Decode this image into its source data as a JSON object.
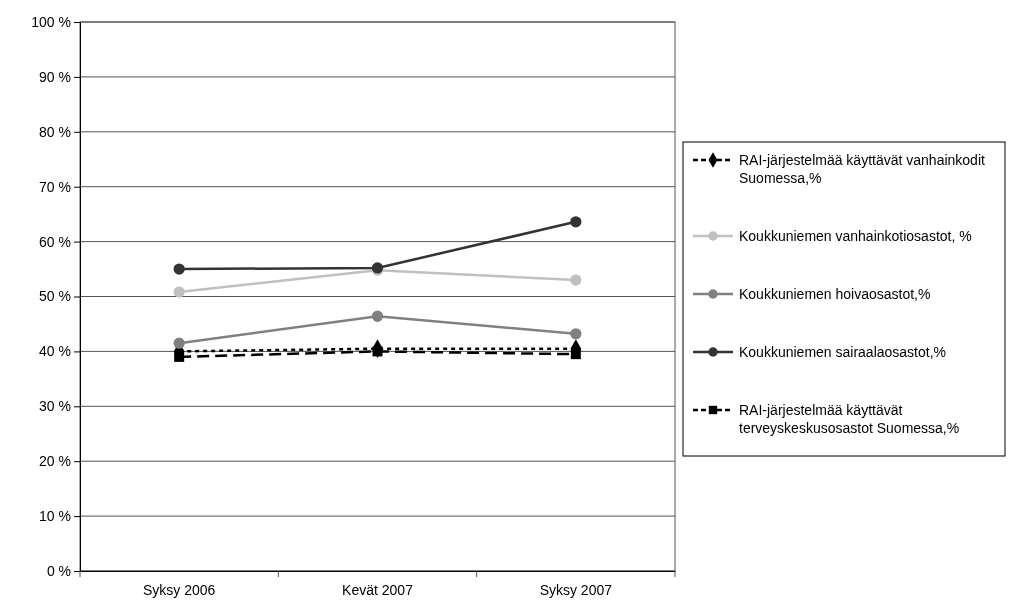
{
  "chart_data": {
    "type": "line",
    "categories": [
      "Syksy 2006",
      "Kevät 2007",
      "Syksy 2007"
    ],
    "ylim": [
      0,
      100
    ],
    "yticks": [
      {
        "value": 0,
        "label": "0 %"
      },
      {
        "value": 10,
        "label": "10 %"
      },
      {
        "value": 20,
        "label": "20 %"
      },
      {
        "value": 30,
        "label": "30 %"
      },
      {
        "value": 40,
        "label": "40 %"
      },
      {
        "value": 50,
        "label": "50 %"
      },
      {
        "value": 60,
        "label": "60 %"
      },
      {
        "value": 70,
        "label": "70 %"
      },
      {
        "value": 80,
        "label": "80 %"
      },
      {
        "value": 90,
        "label": "90 %"
      },
      {
        "value": 100,
        "label": "100 %"
      }
    ],
    "grid": "y",
    "legend": "right",
    "series": [
      {
        "name": "RAI-järjestelmää käyttävät vanhainkodit Suomessa,%",
        "color": "#000000",
        "values": [
          40.0,
          40.5,
          40.5
        ],
        "marker": "diamond",
        "line_style": "dotted"
      },
      {
        "name": "Koukkuniemen vanhainkotiosastot, %",
        "color": "#c0c0c0",
        "values": [
          50.8,
          54.8,
          53.0
        ],
        "marker": "circle",
        "line_style": "solid"
      },
      {
        "name": "Koukkuniemen hoivaosastot,%",
        "color": "#808080",
        "values": [
          41.5,
          46.4,
          43.2
        ],
        "marker": "circle",
        "line_style": "solid"
      },
      {
        "name": "Koukkuniemen sairaalaosastot,%",
        "color": "#333333",
        "values": [
          55.0,
          55.2,
          63.6
        ],
        "marker": "circle",
        "line_style": "solid"
      },
      {
        "name": "RAI-järjestelmää käyttävät terveyskeskusosastot Suomessa,%",
        "color": "#000000",
        "values": [
          39.0,
          40.0,
          39.5
        ],
        "marker": "square",
        "line_style": "dashed"
      }
    ]
  }
}
